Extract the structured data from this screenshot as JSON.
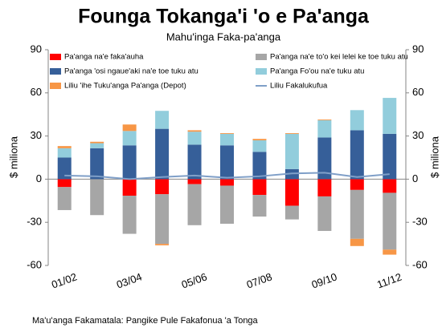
{
  "chart_data": {
    "type": "bar",
    "stacked": true,
    "title": "Founga Tokanga'i 'o e Pa'anga",
    "subtitle": "Mahu'inga  Faka-pa'anga",
    "ylabel": "$ miliona",
    "y2label": "$ miliona",
    "source": "Ma'u'anga Fakamatala: Pangike Pule Fakafonua 'a Tonga",
    "categories": [
      "01/02",
      null,
      "03/04",
      null,
      "05/06",
      null,
      "07/08",
      null,
      "09/10",
      null,
      "11/12"
    ],
    "ylim": [
      -60,
      90
    ],
    "yticks": [
      -60,
      -30,
      0,
      30,
      60,
      90
    ],
    "y2lim": [
      -60,
      90
    ],
    "y2ticks": [
      -60,
      -30,
      0,
      30,
      60,
      90
    ],
    "series": [
      {
        "name": "Pa'anga na'e faka'auha",
        "type": "bar",
        "color": "#ff0000",
        "values": [
          -5.5,
          0,
          -11.5,
          -10.5,
          -3.5,
          -4.5,
          -11,
          -18.5,
          -12,
          -7.5,
          -9.5
        ]
      },
      {
        "name": "Pa'anga na'e to'o kei lelei ke toe tuku atu",
        "type": "bar",
        "color": "#a6a6a6",
        "values": [
          -16,
          -25,
          -26.5,
          -34.5,
          -28.5,
          -26.5,
          -15,
          -9.5,
          -24,
          -34,
          -39.5
        ]
      },
      {
        "name": "Pa'anga 'osi ngaue'aki na'e toe tuku atu",
        "type": "bar",
        "color": "#365f99",
        "values": [
          15,
          21.5,
          23.5,
          35,
          24,
          23.5,
          19,
          7,
          29,
          34,
          31.5
        ]
      },
      {
        "name": "Pa'anga Fo'ou na'e tuku atu",
        "type": "bar",
        "color": "#92cddc",
        "values": [
          6.5,
          3.5,
          10,
          12.5,
          9,
          8,
          8,
          24.5,
          12,
          14,
          25
        ]
      },
      {
        "name": "Liliu 'ihe Tuku'anga Pa'anga (Depot)",
        "type": "bar",
        "color": "#f79646",
        "values": [
          1.5,
          1,
          4.5,
          -1,
          1,
          0.5,
          1,
          0.5,
          0.5,
          -5,
          -3.5
        ]
      },
      {
        "name": "Liliu Fakalukufua",
        "type": "line",
        "color": "#7f9fc8",
        "values": [
          2.5,
          2,
          0,
          1.5,
          2.5,
          1,
          2,
          4,
          4.5,
          1.5,
          3.5
        ]
      }
    ]
  }
}
